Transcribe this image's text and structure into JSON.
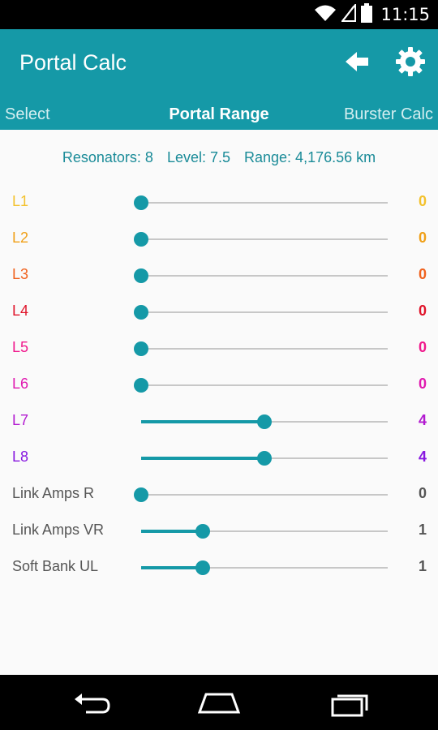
{
  "status_bar": {
    "time": "11:15",
    "icons": [
      "wifi-icon",
      "signal-icon",
      "battery-icon"
    ]
  },
  "app_bar": {
    "title": "Portal Calc",
    "icons": [
      "back-arrow-icon",
      "gear-icon"
    ]
  },
  "tabs": [
    {
      "label": "Select"
    },
    {
      "label": "Portal Range"
    },
    {
      "label": "Burster Calc"
    }
  ],
  "summary": {
    "resonators": "Resonators: 8",
    "level": "Level: 7.5",
    "range": "Range: 4,176.56 km"
  },
  "sliders": [
    {
      "label": "L1",
      "value": "0",
      "level": 0,
      "color": "#f3c12c"
    },
    {
      "label": "L2",
      "value": "0",
      "level": 0,
      "color": "#f0a018"
    },
    {
      "label": "L3",
      "value": "0",
      "level": 0,
      "color": "#f0621e"
    },
    {
      "label": "L4",
      "value": "0",
      "level": 0,
      "color": "#e0142a"
    },
    {
      "label": "L5",
      "value": "0",
      "level": 0,
      "color": "#f0188c"
    },
    {
      "label": "L6",
      "value": "0",
      "level": 0,
      "color": "#e01ab0"
    },
    {
      "label": "L7",
      "value": "4",
      "level": 0.5,
      "color": "#b21ad0"
    },
    {
      "label": "L8",
      "value": "4",
      "level": 0.5,
      "color": "#8818e0"
    },
    {
      "label": "Link Amps R",
      "value": "0",
      "level": 0,
      "color": "#555555"
    },
    {
      "label": "Link Amps VR",
      "value": "1",
      "level": 0.25,
      "color": "#555555"
    },
    {
      "label": "Soft Bank UL",
      "value": "1",
      "level": 0.25,
      "color": "#555555"
    }
  ],
  "nav": [
    "back-nav-icon",
    "home-nav-icon",
    "recents-nav-icon"
  ],
  "colors": {
    "accent": "#1599a7",
    "summary_text": "#1a8b98"
  }
}
